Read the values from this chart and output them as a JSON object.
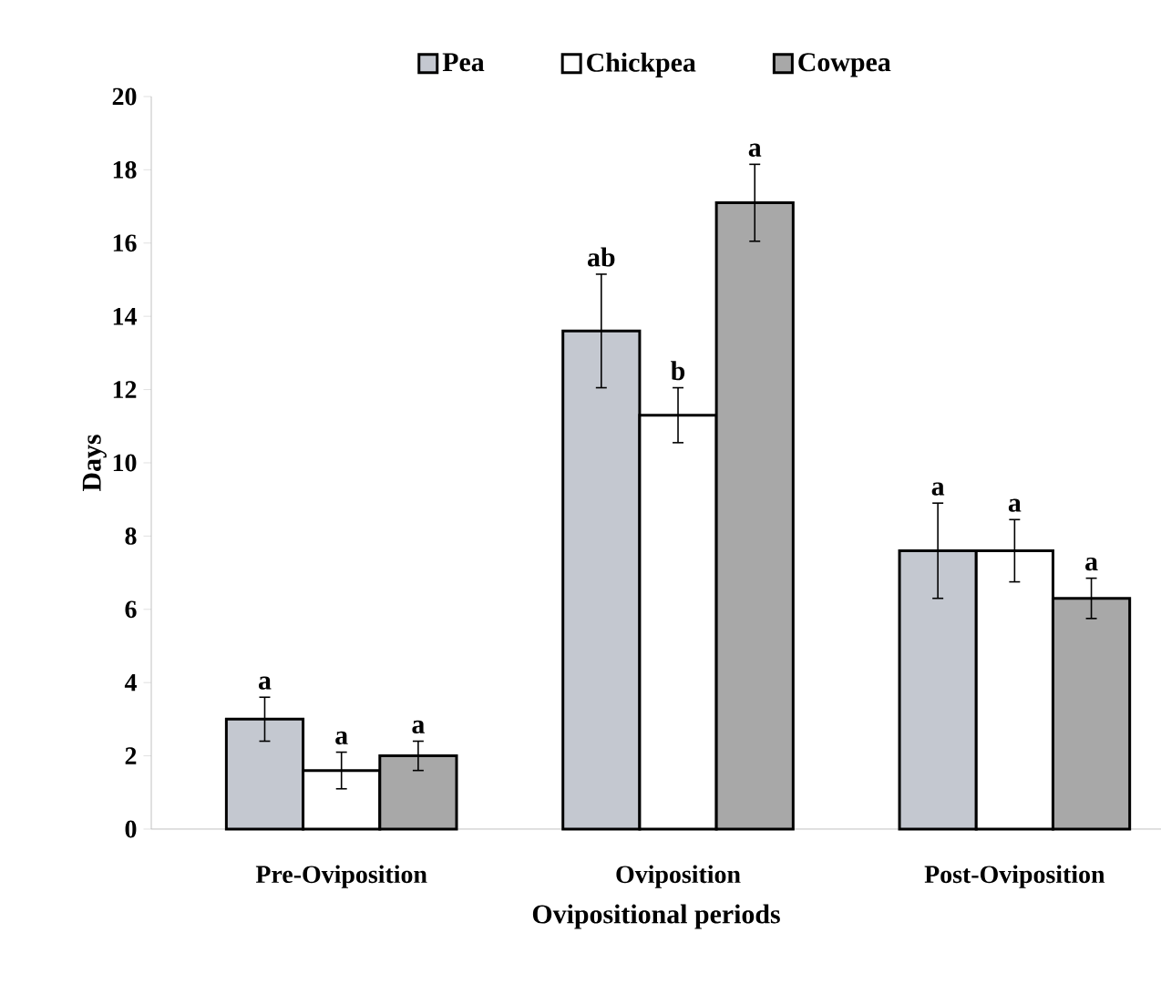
{
  "chart_data": {
    "type": "bar",
    "xlabel": "Ovipositional periods",
    "ylabel": "Days",
    "categories": [
      "Pre-Oviposition",
      "Oviposition",
      "Post-Oviposition"
    ],
    "series": [
      {
        "name": "Pea",
        "color": "#c4c8d0",
        "values": [
          3.0,
          13.6,
          7.6
        ],
        "errors": [
          0.6,
          1.55,
          1.3
        ]
      },
      {
        "name": "Chickpea",
        "color": "#ffffff",
        "values": [
          1.6,
          11.3,
          7.6
        ],
        "errors": [
          0.5,
          0.75,
          0.85
        ]
      },
      {
        "name": "Cowpea",
        "color": "#a8a8a8",
        "values": [
          2.0,
          17.1,
          6.3
        ],
        "errors": [
          0.4,
          1.05,
          0.55
        ]
      }
    ],
    "ylim": [
      0,
      20
    ],
    "yticks": [
      0,
      2,
      4,
      6,
      8,
      10,
      12,
      14,
      16,
      18,
      20
    ],
    "grid": false,
    "legend": "top",
    "annotations": [
      "a",
      "ab",
      "a",
      "a",
      "b",
      "a",
      "a",
      "a",
      "a"
    ]
  }
}
